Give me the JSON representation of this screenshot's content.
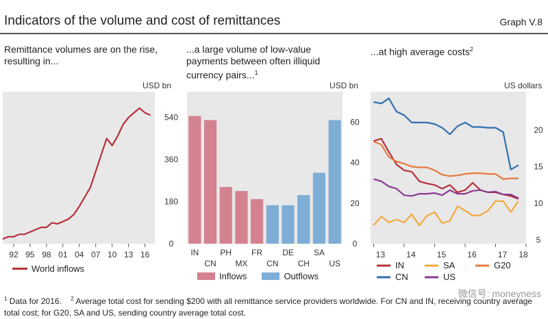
{
  "header": {
    "title": "Indicators of the volume and cost of remittances",
    "graph_id": "Graph V.8"
  },
  "panels": {
    "p1": {
      "subtitle": "Remittance volumes are on the rise, resulting in...",
      "unit": "USD bn",
      "legend": "World inflows"
    },
    "p2": {
      "subtitle_line1": "...a large volume of low-value",
      "subtitle_line2": "payments between often illiquid",
      "subtitle_line3": "currency pairs...",
      "subtitle_sup": "1",
      "unit": "USD bn",
      "legend_inflows": "Inflows",
      "legend_outflows": "Outflows"
    },
    "p3": {
      "subtitle": "...at high average costs",
      "subtitle_sup": "2",
      "unit": "US dollars"
    }
  },
  "footnote": {
    "n1": "1",
    "t1": "Data for 2016.",
    "n2": "2",
    "t2": "Average total cost for sending $200 with all remittance service providers worldwide. For CN and IN, receiving country average total cost; for G20, SA and US, sending country average total cost."
  },
  "watermark": "微信号: moneyness",
  "colors": {
    "bg": "#e8e8e8",
    "line_red": "#b5303a",
    "inflows": "#d4828f",
    "outflows": "#7eadd6",
    "IN": "#b5303a",
    "CN": "#2e6fb0",
    "SA": "#f2a93b",
    "US": "#8a3a8f",
    "G20": "#e6793a"
  },
  "chart_data": [
    {
      "type": "line",
      "x": [
        1990,
        1991,
        1992,
        1993,
        1994,
        1995,
        1996,
        1997,
        1998,
        1999,
        2000,
        2001,
        2002,
        2003,
        2004,
        2005,
        2006,
        2007,
        2008,
        2009,
        2010,
        2011,
        2012,
        2013,
        2014,
        2015,
        2016,
        2017
      ],
      "series": [
        {
          "name": "World inflows",
          "values": [
            20,
            30,
            30,
            40,
            40,
            50,
            60,
            70,
            70,
            90,
            85,
            95,
            105,
            125,
            160,
            200,
            240,
            310,
            380,
            450,
            420,
            460,
            510,
            540,
            560,
            580,
            560,
            550
          ]
        }
      ],
      "xticks": [
        1992,
        1995,
        1998,
        2001,
        2004,
        2007,
        2010,
        2013,
        2016
      ],
      "xtick_labels": [
        "92",
        "95",
        "98",
        "01",
        "04",
        "07",
        "10",
        "13",
        "16"
      ],
      "yticks": [
        0,
        180,
        360,
        540
      ],
      "ylim": [
        0,
        650
      ],
      "xlim": [
        1990,
        2017.8
      ],
      "ylabel": "USD bn"
    },
    {
      "type": "bar",
      "categories": [
        "IN",
        "CN",
        "PH",
        "MX",
        "FR",
        "CN",
        "DE",
        "CH",
        "SA",
        "US"
      ],
      "category_labels_row1": [
        "IN",
        "",
        "PH",
        "",
        "FR",
        "",
        "DE",
        "",
        "SA",
        ""
      ],
      "category_labels_row2": [
        "",
        "CN",
        "",
        "MX",
        "",
        "CN",
        "",
        "CH",
        "",
        "US"
      ],
      "series": [
        {
          "name": "Inflows",
          "values": [
            63,
            61,
            28,
            26,
            22,
            null,
            null,
            null,
            null,
            null
          ]
        },
        {
          "name": "Outflows",
          "values": [
            null,
            null,
            null,
            null,
            null,
            19,
            19,
            24,
            35,
            61
          ]
        }
      ],
      "yticks": [
        0,
        20,
        40,
        60
      ],
      "ylim": [
        0,
        75
      ],
      "ylabel": "USD bn"
    },
    {
      "type": "line",
      "x": [
        2013.0,
        2013.25,
        2013.5,
        2013.75,
        2014.0,
        2014.25,
        2014.5,
        2014.75,
        2015.0,
        2015.25,
        2015.5,
        2015.75,
        2016.0,
        2016.25,
        2016.5,
        2016.75,
        2017.0,
        2017.25,
        2017.5,
        2017.75
      ],
      "series": [
        {
          "name": "IN",
          "values": [
            18.5,
            18.8,
            17.0,
            15.3,
            14.5,
            14.3,
            13.0,
            12.7,
            12.5,
            12.0,
            12.5,
            11.5,
            11.8,
            12.8,
            11.8,
            11.5,
            11.5,
            11.2,
            11.0,
            10.6
          ]
        },
        {
          "name": "CN",
          "values": [
            23.8,
            23.6,
            24.3,
            22.5,
            22.0,
            21.0,
            21.0,
            21.0,
            20.8,
            20.3,
            19.4,
            20.5,
            21.0,
            20.4,
            20.4,
            20.3,
            20.3,
            19.7,
            14.6,
            15.2
          ]
        },
        {
          "name": "SA",
          "values": [
            7.0,
            8.2,
            7.4,
            7.8,
            7.4,
            8.5,
            7.0,
            8.3,
            8.8,
            7.3,
            7.6,
            9.6,
            9.0,
            8.3,
            8.4,
            9.0,
            10.3,
            10.3,
            8.8,
            10.3
          ]
        },
        {
          "name": "US",
          "values": [
            13.3,
            13.0,
            12.3,
            12.0,
            11.1,
            11.0,
            11.3,
            11.3,
            11.4,
            11.1,
            11.8,
            11.3,
            11.3,
            11.7,
            11.8,
            11.5,
            11.6,
            11.2,
            11.2,
            10.7
          ]
        },
        {
          "name": "G20",
          "values": [
            18.4,
            18.0,
            16.3,
            15.7,
            15.4,
            15.0,
            14.9,
            14.9,
            14.5,
            13.9,
            13.7,
            13.8,
            14.0,
            14.1,
            14.1,
            14.0,
            14.0,
            13.3,
            13.4,
            13.4
          ]
        }
      ],
      "xticks": [
        2013,
        2014,
        2015,
        2016,
        2017,
        2018
      ],
      "xtick_labels": [
        "13",
        "14",
        "15",
        "16",
        "17",
        "18"
      ],
      "yticks": [
        5,
        10,
        15,
        20
      ],
      "ylim": [
        4.5,
        25.2
      ],
      "xlim": [
        2012.9,
        2018.0
      ],
      "ylabel": "US dollars",
      "legend": [
        "IN",
        "SA",
        "G20",
        "CN",
        "US"
      ]
    }
  ]
}
